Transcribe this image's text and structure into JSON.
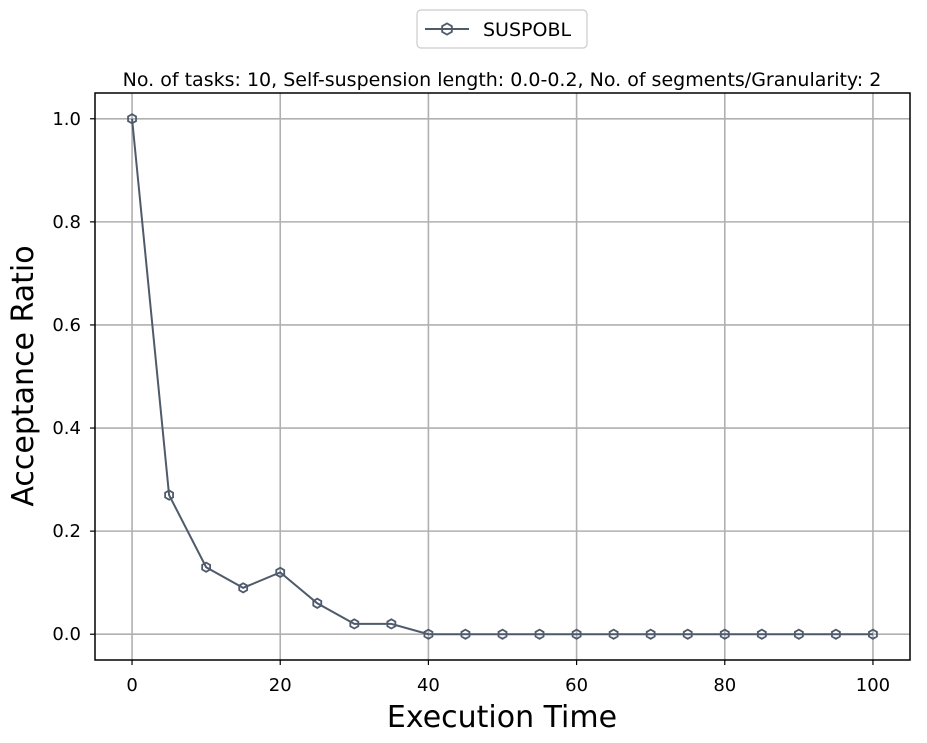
{
  "chart_data": {
    "type": "line",
    "title": "No. of tasks: 10, Self-suspension length: 0.0-0.2, No. of segments/Granularity: 2",
    "xlabel": "Execution Time",
    "ylabel": "Acceptance Ratio",
    "x": [
      0,
      5,
      10,
      15,
      20,
      25,
      30,
      35,
      40,
      45,
      50,
      55,
      60,
      65,
      70,
      75,
      80,
      85,
      90,
      95,
      100
    ],
    "series": [
      {
        "name": "SUSPOBL",
        "color": "#4f5b6b",
        "marker": "hexagon",
        "values": [
          1.0,
          0.27,
          0.13,
          0.09,
          0.12,
          0.06,
          0.02,
          0.02,
          0.0,
          0.0,
          0.0,
          0.0,
          0.0,
          0.0,
          0.0,
          0.0,
          0.0,
          0.0,
          0.0,
          0.0,
          0.0
        ]
      }
    ],
    "xlim": [
      -5,
      105
    ],
    "ylim": [
      -0.05,
      1.05
    ],
    "xticks": [
      0,
      20,
      40,
      60,
      80,
      100
    ],
    "yticks": [
      0.0,
      0.2,
      0.4,
      0.6,
      0.8,
      1.0
    ],
    "xtick_labels": [
      "0",
      "20",
      "40",
      "60",
      "80",
      "100"
    ],
    "ytick_labels": [
      "0.0",
      "0.2",
      "0.4",
      "0.6",
      "0.8",
      "1.0"
    ],
    "grid": true,
    "legend_position": "top-center"
  }
}
